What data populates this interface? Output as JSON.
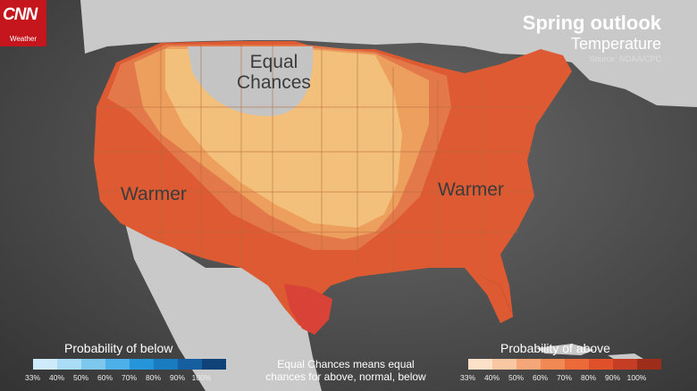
{
  "brand": {
    "name": "CNN",
    "section": "Weather"
  },
  "title": {
    "main": "Spring outlook",
    "sub": "Temperature",
    "source": "Source: NOAA/CPC"
  },
  "labels": {
    "equal_line1": "Equal",
    "equal_line2": "Chances",
    "warmer_west": "Warmer",
    "warmer_east": "Warmer"
  },
  "legend_below": {
    "title": "Probability of below",
    "ticks": [
      "33%",
      "40%",
      "50%",
      "60%",
      "70%",
      "80%",
      "90%",
      "100%"
    ],
    "colors": [
      "#cdebfb",
      "#a9dcf7",
      "#7ec8f0",
      "#4eb0e8",
      "#2595da",
      "#1a7cc0",
      "#155ea0",
      "#0e4278"
    ]
  },
  "legend_above": {
    "title": "Probability of above",
    "ticks": [
      "33%",
      "40%",
      "50%",
      "60%",
      "70%",
      "80%",
      "90%",
      "100%"
    ],
    "colors": [
      "#fde0c8",
      "#f9c7a2",
      "#f5a77a",
      "#f08954",
      "#ec6a37",
      "#e0502a",
      "#c53d22",
      "#9e2c1a"
    ]
  },
  "note": {
    "line1": "Equal Chances means equal",
    "line2": "chances for above, normal, below"
  },
  "map_colors": {
    "land": "#c9c9c9",
    "water": "#555555",
    "p33": "#f3c07c",
    "p40": "#eda05d",
    "p50": "#e3784a",
    "p60": "#dd5a32",
    "p70": "#d94236",
    "equal": "#c4c4c4"
  }
}
